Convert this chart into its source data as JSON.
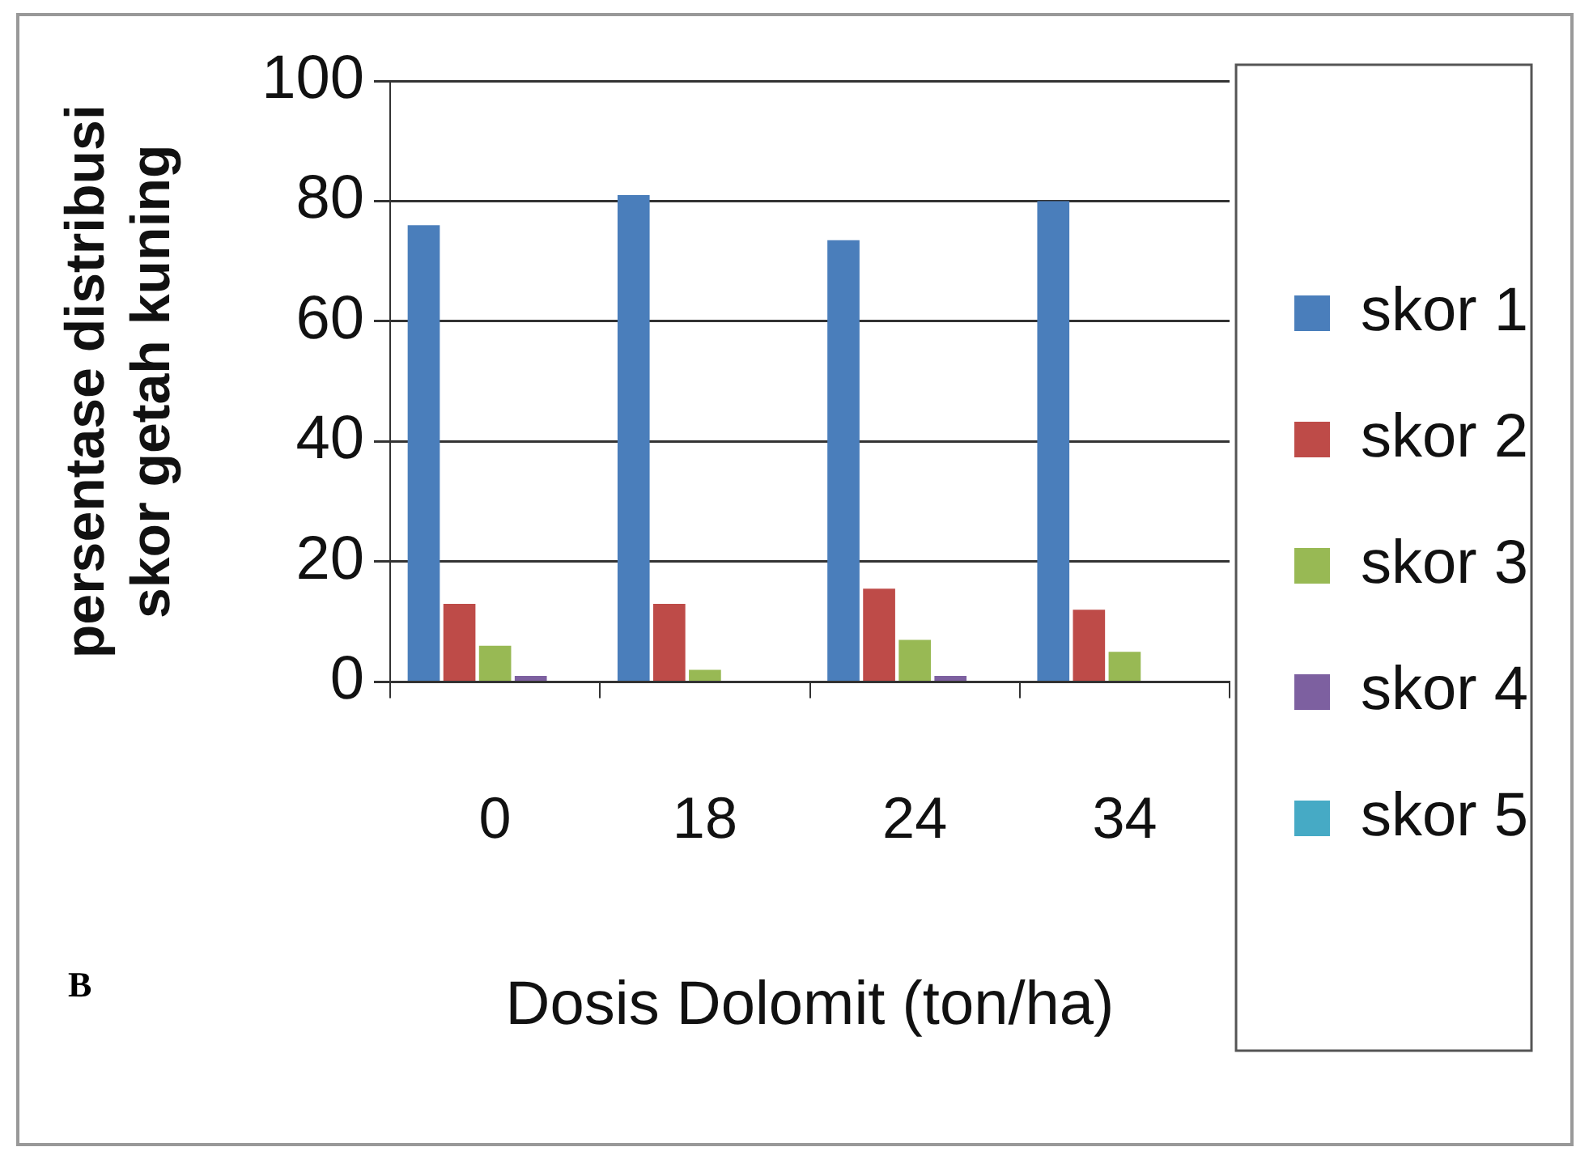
{
  "chart_data": {
    "type": "bar",
    "xlabel": "Dosis Dolomit (ton/ha)",
    "ylabel": "persentase distribusi\nskor getah kuning",
    "categories": [
      "0",
      "18",
      "24",
      "34"
    ],
    "series": [
      {
        "name": "skor 1",
        "color": "#4a7ebb",
        "values": [
          76,
          81,
          73.5,
          80
        ]
      },
      {
        "name": "skor 2",
        "color": "#be4b48",
        "values": [
          13,
          13,
          15.5,
          12
        ]
      },
      {
        "name": "skor 3",
        "color": "#98b954",
        "values": [
          6,
          2,
          7,
          5
        ]
      },
      {
        "name": "skor 4",
        "color": "#7d60a0",
        "values": [
          1,
          0,
          1,
          0
        ]
      },
      {
        "name": "skor 5",
        "color": "#46aac5",
        "values": [
          0,
          0,
          0,
          0
        ]
      }
    ],
    "ylim": [
      0,
      100
    ],
    "yticks": [
      0,
      20,
      40,
      60,
      80,
      100
    ],
    "grid": "y",
    "legend": "right",
    "annotations": [
      "B"
    ]
  }
}
